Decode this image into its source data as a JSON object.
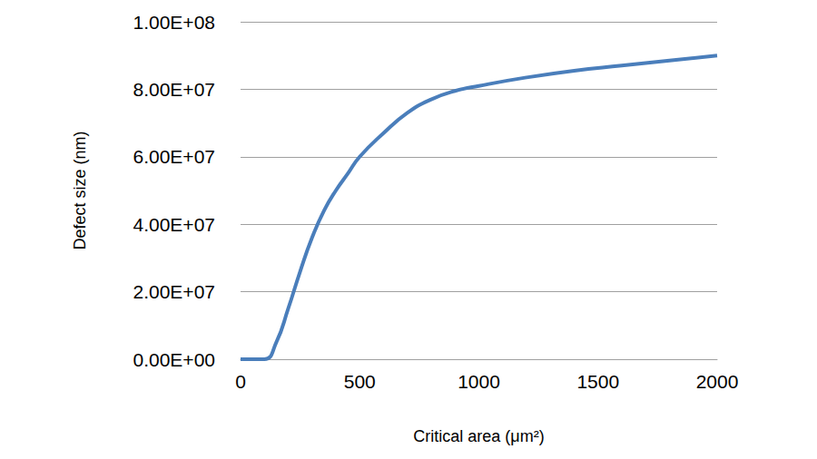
{
  "chart_data": {
    "type": "line",
    "x_label": "Critical area (μm²)",
    "y_label": "Defect size (nm)",
    "x": [
      0,
      100,
      150,
      200,
      250,
      300,
      350,
      400,
      450,
      500,
      600,
      700,
      800,
      900,
      1000,
      1200,
      1400,
      1600,
      1800,
      2000
    ],
    "values": [
      0,
      0,
      5000000,
      15000000,
      26000000,
      36000000,
      44000000,
      50000000,
      55000000,
      60000000,
      67000000,
      73000000,
      77000000,
      79500000,
      81000000,
      83500000,
      85500000,
      87000000,
      88500000,
      90000000
    ],
    "color": "#4a7ebb",
    "xlim": [
      0,
      2000
    ],
    "xticks": [
      0,
      500,
      1000,
      1500,
      2000
    ],
    "ylim": [
      0,
      100000000
    ],
    "yticks": [
      {
        "value": 0,
        "label": "0.00E+00"
      },
      {
        "value": 20000000,
        "label": "2.00E+07"
      },
      {
        "value": 40000000,
        "label": "4.00E+07"
      },
      {
        "value": 60000000,
        "label": "6.00E+07"
      },
      {
        "value": 80000000,
        "label": "8.00E+07"
      },
      {
        "value": 100000000,
        "label": "1.00E+08"
      }
    ],
    "grid": true
  }
}
